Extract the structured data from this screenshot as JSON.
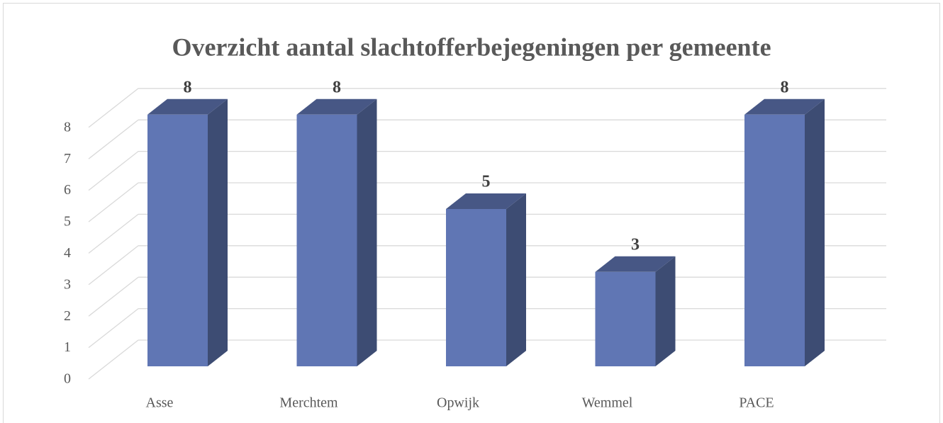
{
  "chart_data": {
    "type": "bar3d",
    "title": "Overzicht aantal slachtofferbejegeningen per gemeente",
    "categories": [
      "Asse",
      "Merchtem",
      "Opwijk",
      "Wemmel",
      "PACE"
    ],
    "values": [
      8,
      8,
      5,
      3,
      8
    ],
    "color": "#6076b4",
    "ylim": [
      0,
      8
    ],
    "yticks": [
      0,
      1,
      2,
      3,
      4,
      5,
      6,
      7,
      8
    ],
    "grid": true
  }
}
